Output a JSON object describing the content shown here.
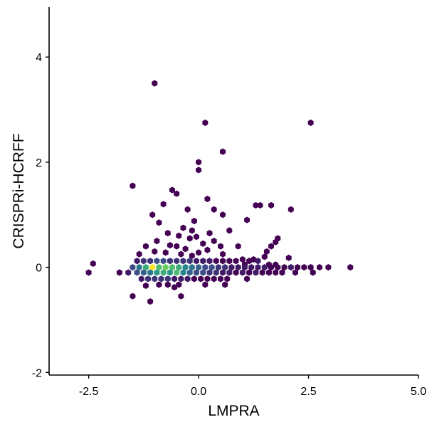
{
  "chart_data": {
    "type": "hexbin",
    "xlabel": "LMPRA",
    "ylabel": "CRISPRi-HCRFF",
    "xlim": [
      -3.4,
      5.0
    ],
    "ylim": [
      -2.05,
      4.95
    ],
    "x_ticks": [
      {
        "value": -2.5,
        "label": "-2.5"
      },
      {
        "value": 0.0,
        "label": "0.0"
      },
      {
        "value": 2.5,
        "label": "2.5"
      },
      {
        "value": 5.0,
        "label": "5.0"
      }
    ],
    "y_ticks": [
      {
        "value": -2,
        "label": "-2"
      },
      {
        "value": 0,
        "label": "0"
      },
      {
        "value": 2,
        "label": "2"
      },
      {
        "value": 4,
        "label": "4"
      }
    ],
    "grid": false,
    "legend": "none",
    "colormap": [
      "#440154",
      "#3b528b",
      "#21908c",
      "#5dc863",
      "#fde725"
    ],
    "points": [
      {
        "x": -1.0,
        "y": 3.5,
        "count": 1
      },
      {
        "x": 0.15,
        "y": 2.75,
        "count": 1
      },
      {
        "x": 2.55,
        "y": 2.75,
        "count": 1
      },
      {
        "x": 0.55,
        "y": 2.2,
        "count": 1
      },
      {
        "x": 0.0,
        "y": 2.0,
        "count": 1
      },
      {
        "x": 0.0,
        "y": 1.85,
        "count": 1
      },
      {
        "x": -1.5,
        "y": 1.55,
        "count": 1
      },
      {
        "x": -0.6,
        "y": 1.47,
        "count": 1
      },
      {
        "x": -0.5,
        "y": 1.4,
        "count": 1
      },
      {
        "x": 0.2,
        "y": 1.3,
        "count": 1
      },
      {
        "x": -0.8,
        "y": 1.2,
        "count": 1
      },
      {
        "x": -0.25,
        "y": 1.1,
        "count": 1
      },
      {
        "x": 1.3,
        "y": 1.18,
        "count": 1
      },
      {
        "x": 1.4,
        "y": 1.18,
        "count": 1
      },
      {
        "x": 1.65,
        "y": 1.18,
        "count": 1
      },
      {
        "x": -1.05,
        "y": 1.0,
        "count": 1
      },
      {
        "x": 0.35,
        "y": 1.1,
        "count": 1
      },
      {
        "x": 2.1,
        "y": 1.1,
        "count": 1
      },
      {
        "x": 0.55,
        "y": 1.0,
        "count": 1
      },
      {
        "x": 1.1,
        "y": 0.9,
        "count": 1
      },
      {
        "x": -0.1,
        "y": 0.88,
        "count": 1
      },
      {
        "x": -0.9,
        "y": 0.85,
        "count": 1
      },
      {
        "x": -0.35,
        "y": 0.75,
        "count": 1
      },
      {
        "x": -0.15,
        "y": 0.7,
        "count": 1
      },
      {
        "x": 0.25,
        "y": 0.65,
        "count": 1
      },
      {
        "x": -0.7,
        "y": 0.65,
        "count": 1
      },
      {
        "x": 0.7,
        "y": 0.7,
        "count": 1
      },
      {
        "x": -0.45,
        "y": 0.6,
        "count": 1
      },
      {
        "x": -0.05,
        "y": 0.58,
        "count": 1
      },
      {
        "x": 1.8,
        "y": 0.55,
        "count": 1
      },
      {
        "x": -0.2,
        "y": 0.55,
        "count": 1
      },
      {
        "x": -0.95,
        "y": 0.5,
        "count": 1
      },
      {
        "x": 0.35,
        "y": 0.5,
        "count": 1
      },
      {
        "x": 1.75,
        "y": 0.48,
        "count": 1
      },
      {
        "x": 0.1,
        "y": 0.45,
        "count": 1
      },
      {
        "x": 1.65,
        "y": 0.4,
        "count": 1
      },
      {
        "x": -0.65,
        "y": 0.42,
        "count": 1
      },
      {
        "x": -1.2,
        "y": 0.4,
        "count": 1
      },
      {
        "x": -0.5,
        "y": 0.4,
        "count": 1
      },
      {
        "x": 0.5,
        "y": 0.4,
        "count": 1
      },
      {
        "x": 0.9,
        "y": 0.4,
        "count": 1
      },
      {
        "x": 1.55,
        "y": 0.3,
        "count": 1
      },
      {
        "x": -0.3,
        "y": 0.35,
        "count": 1
      },
      {
        "x": 0.2,
        "y": 0.33,
        "count": 1
      },
      {
        "x": -1.0,
        "y": 0.3,
        "count": 1
      },
      {
        "x": -0.75,
        "y": 0.28,
        "count": 1
      },
      {
        "x": 0.0,
        "y": 0.28,
        "count": 1
      },
      {
        "x": 0.55,
        "y": 0.25,
        "count": 1
      },
      {
        "x": -1.35,
        "y": 0.25,
        "count": 1
      },
      {
        "x": -0.4,
        "y": 0.25,
        "count": 1
      },
      {
        "x": -0.15,
        "y": 0.22,
        "count": 1
      },
      {
        "x": 1.5,
        "y": 0.2,
        "count": 1
      },
      {
        "x": -2.4,
        "y": 0.07,
        "count": 1
      },
      {
        "x": -2.5,
        "y": -0.1,
        "count": 1
      },
      {
        "x": 2.05,
        "y": 0.18,
        "count": 1
      },
      {
        "x": 1.0,
        "y": 0.15,
        "count": 1
      },
      {
        "x": 1.25,
        "y": 0.15,
        "count": 1
      },
      {
        "x": 1.35,
        "y": 0.12,
        "count": 2
      },
      {
        "x": -1.4,
        "y": 0.12,
        "count": 2
      },
      {
        "x": -1.25,
        "y": 0.12,
        "count": 3
      },
      {
        "x": -1.1,
        "y": 0.12,
        "count": 3
      },
      {
        "x": -0.95,
        "y": 0.12,
        "count": 4
      },
      {
        "x": -0.8,
        "y": 0.12,
        "count": 4
      },
      {
        "x": -0.65,
        "y": 0.12,
        "count": 3
      },
      {
        "x": -0.5,
        "y": 0.12,
        "count": 3
      },
      {
        "x": -0.35,
        "y": 0.12,
        "count": 3
      },
      {
        "x": -0.2,
        "y": 0.12,
        "count": 3
      },
      {
        "x": -0.05,
        "y": 0.12,
        "count": 2
      },
      {
        "x": 0.1,
        "y": 0.12,
        "count": 2
      },
      {
        "x": 0.25,
        "y": 0.12,
        "count": 2
      },
      {
        "x": 0.4,
        "y": 0.12,
        "count": 1
      },
      {
        "x": 0.55,
        "y": 0.12,
        "count": 1
      },
      {
        "x": 0.7,
        "y": 0.12,
        "count": 1
      },
      {
        "x": 0.85,
        "y": 0.12,
        "count": 1
      },
      {
        "x": 1.15,
        "y": 0.12,
        "count": 1
      },
      {
        "x": 1.05,
        "y": 0.05,
        "count": 1
      },
      {
        "x": 1.6,
        "y": 0.05,
        "count": 1
      },
      {
        "x": 1.75,
        "y": 0.05,
        "count": 1
      },
      {
        "x": -1.5,
        "y": 0.0,
        "count": 4
      },
      {
        "x": -1.35,
        "y": 0.0,
        "count": 6
      },
      {
        "x": -1.2,
        "y": 0.0,
        "count": 9
      },
      {
        "x": -1.05,
        "y": 0.0,
        "count": 14
      },
      {
        "x": -0.9,
        "y": 0.0,
        "count": 10
      },
      {
        "x": -0.75,
        "y": 0.0,
        "count": 11
      },
      {
        "x": -0.6,
        "y": 0.0,
        "count": 10
      },
      {
        "x": -0.45,
        "y": 0.0,
        "count": 9
      },
      {
        "x": -0.3,
        "y": 0.0,
        "count": 7
      },
      {
        "x": -0.15,
        "y": 0.0,
        "count": 6
      },
      {
        "x": 0.0,
        "y": 0.0,
        "count": 5
      },
      {
        "x": 0.15,
        "y": 0.0,
        "count": 4
      },
      {
        "x": 0.3,
        "y": 0.0,
        "count": 4
      },
      {
        "x": 0.45,
        "y": 0.0,
        "count": 3
      },
      {
        "x": 0.6,
        "y": 0.0,
        "count": 3
      },
      {
        "x": 0.75,
        "y": 0.0,
        "count": 2
      },
      {
        "x": 0.9,
        "y": 0.0,
        "count": 2
      },
      {
        "x": 1.05,
        "y": 0.0,
        "count": 2
      },
      {
        "x": 1.2,
        "y": 0.0,
        "count": 2
      },
      {
        "x": 1.35,
        "y": 0.0,
        "count": 2
      },
      {
        "x": 1.5,
        "y": 0.0,
        "count": 2
      },
      {
        "x": 1.65,
        "y": 0.0,
        "count": 1
      },
      {
        "x": 1.8,
        "y": 0.0,
        "count": 1
      },
      {
        "x": 1.95,
        "y": 0.0,
        "count": 1
      },
      {
        "x": 2.1,
        "y": 0.0,
        "count": 2
      },
      {
        "x": 2.25,
        "y": 0.0,
        "count": 1
      },
      {
        "x": 2.4,
        "y": 0.0,
        "count": 1
      },
      {
        "x": 2.55,
        "y": 0.0,
        "count": 1
      },
      {
        "x": 2.75,
        "y": 0.0,
        "count": 1
      },
      {
        "x": 2.95,
        "y": 0.0,
        "count": 1
      },
      {
        "x": 3.45,
        "y": 0.0,
        "count": 1
      },
      {
        "x": -1.6,
        "y": -0.1,
        "count": 2
      },
      {
        "x": -1.8,
        "y": -0.1,
        "count": 1
      },
      {
        "x": -1.4,
        "y": -0.1,
        "count": 4
      },
      {
        "x": -1.25,
        "y": -0.1,
        "count": 5
      },
      {
        "x": -1.1,
        "y": -0.1,
        "count": 6
      },
      {
        "x": -0.95,
        "y": -0.1,
        "count": 8
      },
      {
        "x": -0.8,
        "y": -0.1,
        "count": 9
      },
      {
        "x": -0.65,
        "y": -0.1,
        "count": 8
      },
      {
        "x": -0.5,
        "y": -0.1,
        "count": 10
      },
      {
        "x": -0.35,
        "y": -0.1,
        "count": 7
      },
      {
        "x": -0.2,
        "y": -0.1,
        "count": 5
      },
      {
        "x": -0.05,
        "y": -0.1,
        "count": 4
      },
      {
        "x": 0.1,
        "y": -0.1,
        "count": 4
      },
      {
        "x": 0.25,
        "y": -0.1,
        "count": 3
      },
      {
        "x": 0.4,
        "y": -0.1,
        "count": 3
      },
      {
        "x": 0.55,
        "y": -0.1,
        "count": 2
      },
      {
        "x": 0.7,
        "y": -0.1,
        "count": 2
      },
      {
        "x": 0.85,
        "y": -0.1,
        "count": 1
      },
      {
        "x": 1.0,
        "y": -0.1,
        "count": 2
      },
      {
        "x": 1.15,
        "y": -0.1,
        "count": 1
      },
      {
        "x": 1.3,
        "y": -0.1,
        "count": 2
      },
      {
        "x": 1.45,
        "y": -0.1,
        "count": 1
      },
      {
        "x": 1.6,
        "y": -0.1,
        "count": 1
      },
      {
        "x": 1.75,
        "y": -0.1,
        "count": 1
      },
      {
        "x": 1.9,
        "y": -0.1,
        "count": 1
      },
      {
        "x": 2.2,
        "y": -0.1,
        "count": 1
      },
      {
        "x": 2.6,
        "y": -0.1,
        "count": 1
      },
      {
        "x": -1.3,
        "y": -0.22,
        "count": 2
      },
      {
        "x": -1.15,
        "y": -0.22,
        "count": 3
      },
      {
        "x": -1.0,
        "y": -0.22,
        "count": 3
      },
      {
        "x": -0.85,
        "y": -0.22,
        "count": 3
      },
      {
        "x": -0.7,
        "y": -0.22,
        "count": 3
      },
      {
        "x": -0.55,
        "y": -0.22,
        "count": 2
      },
      {
        "x": -0.4,
        "y": -0.22,
        "count": 2
      },
      {
        "x": -0.25,
        "y": -0.22,
        "count": 2
      },
      {
        "x": -0.1,
        "y": -0.22,
        "count": 1
      },
      {
        "x": 0.05,
        "y": -0.22,
        "count": 1
      },
      {
        "x": 0.2,
        "y": -0.22,
        "count": 1
      },
      {
        "x": 0.35,
        "y": -0.22,
        "count": 1
      },
      {
        "x": 0.5,
        "y": -0.22,
        "count": 1
      },
      {
        "x": 0.65,
        "y": -0.22,
        "count": 1
      },
      {
        "x": 1.1,
        "y": -0.22,
        "count": 1
      },
      {
        "x": -0.9,
        "y": -0.33,
        "count": 1
      },
      {
        "x": -0.7,
        "y": -0.33,
        "count": 1
      },
      {
        "x": -0.45,
        "y": -0.33,
        "count": 1
      },
      {
        "x": 0.15,
        "y": -0.33,
        "count": 1
      },
      {
        "x": 0.6,
        "y": -0.33,
        "count": 1
      },
      {
        "x": -1.2,
        "y": -0.35,
        "count": 1
      },
      {
        "x": -0.55,
        "y": -0.38,
        "count": 1
      },
      {
        "x": -1.5,
        "y": -0.55,
        "count": 1
      },
      {
        "x": -0.4,
        "y": -0.55,
        "count": 1
      },
      {
        "x": -1.1,
        "y": -0.65,
        "count": 1
      }
    ]
  }
}
